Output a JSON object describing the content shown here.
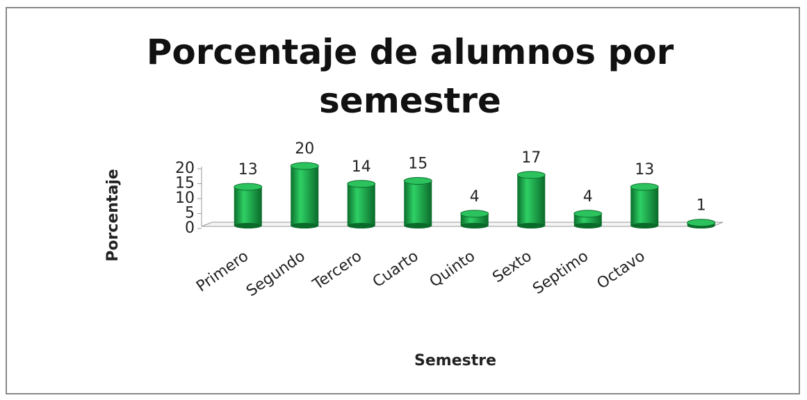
{
  "chart_data": {
    "type": "bar",
    "title": "Porcentaje de alumnos por semestre",
    "x_label": "Semestre",
    "y_label": "Porcentaje",
    "categories": [
      "Primero",
      "Segundo",
      "Tercero",
      "Cuarto",
      "Quinto",
      "Sexto",
      "Septimo",
      "Octavo",
      null
    ],
    "values": [
      13,
      20,
      14,
      15,
      4,
      17,
      4,
      13,
      1
    ],
    "color": "#1aa84a",
    "ylim": [
      0,
      20
    ],
    "yticks": [
      0,
      5,
      10,
      15,
      20
    ],
    "grid": false
  }
}
